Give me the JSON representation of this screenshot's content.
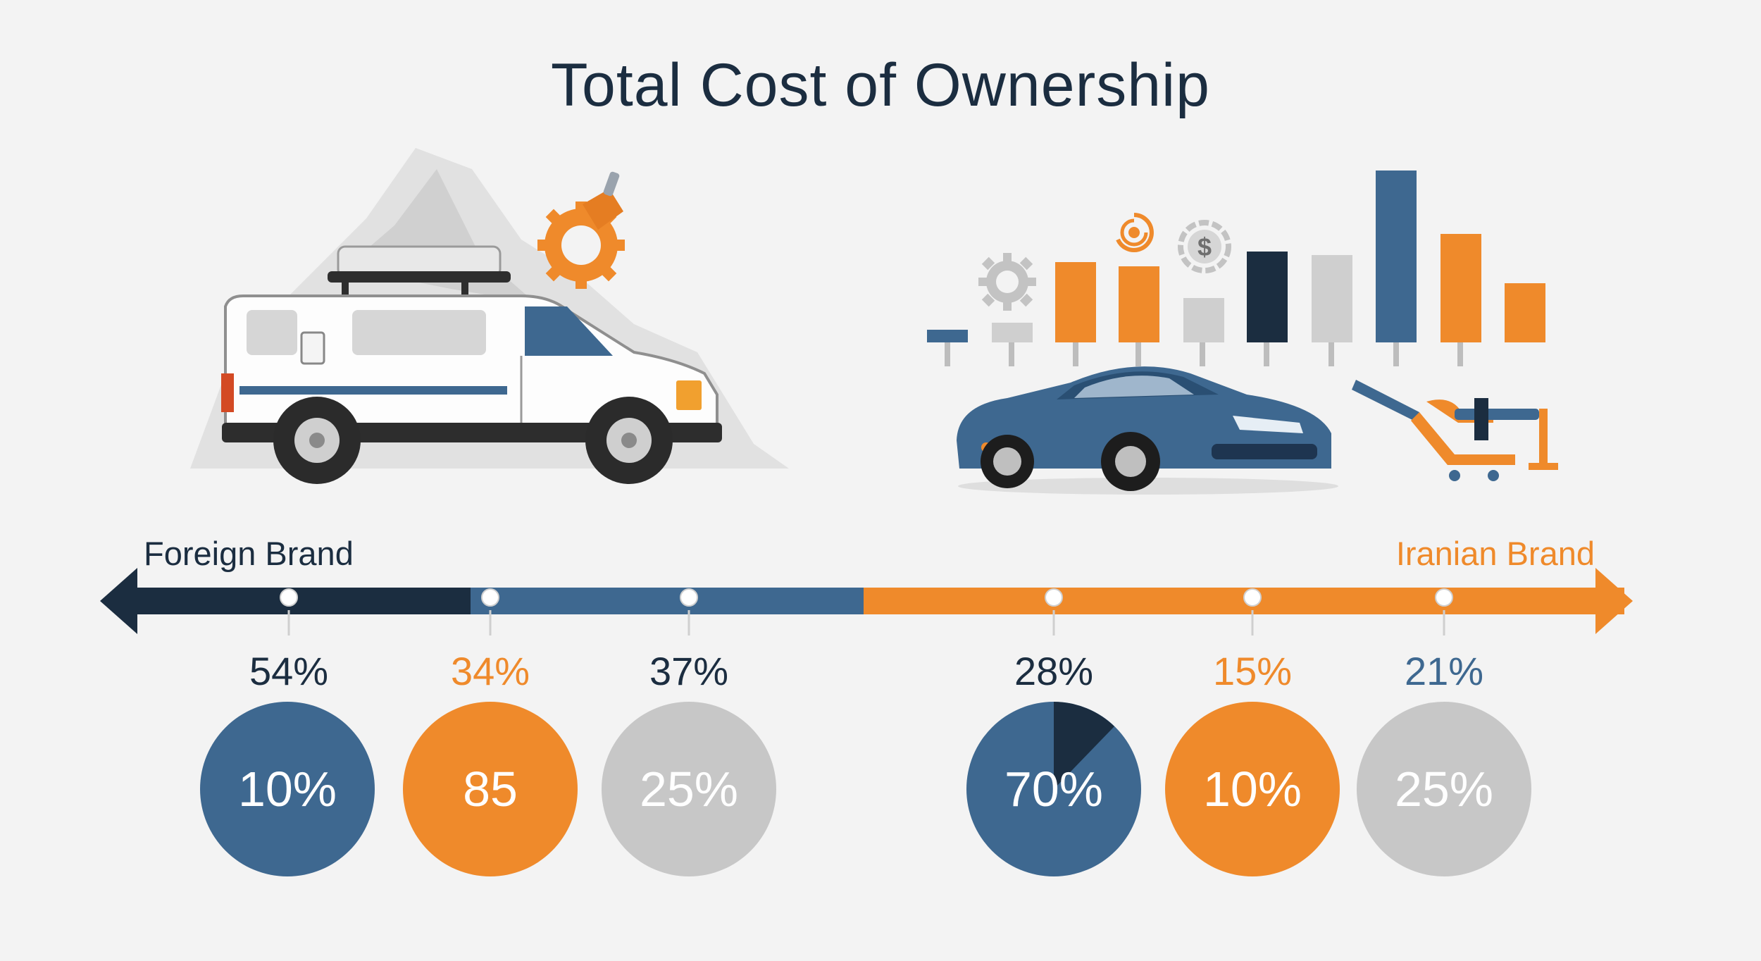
{
  "title": "Total Cost of Ownership",
  "brands": {
    "foreign": "Foreign Brand",
    "iranian": "Iranian Brand"
  },
  "colors": {
    "navy": "#1b2d40",
    "blue": "#3e6890",
    "orange": "#ef8a2b",
    "gray": "#c7c7c7",
    "light_gray": "#dcdcdc"
  },
  "foreign_metrics": [
    {
      "percent": "54%",
      "circle": "10%",
      "percent_color": "#1b2d40",
      "circle_color": "blue"
    },
    {
      "percent": "34%",
      "circle": "85",
      "percent_color": "#ef8a2b",
      "circle_color": "orange"
    },
    {
      "percent": "37%",
      "circle": "25%",
      "percent_color": "#1b2d40",
      "circle_color": "gray"
    }
  ],
  "iranian_metrics": [
    {
      "percent": "28%",
      "circle": "70%",
      "percent_color": "#1b2d40",
      "circle_color": "blue"
    },
    {
      "percent": "15%",
      "circle": "10%",
      "percent_color": "#ef8a2b",
      "circle_color": "orange"
    },
    {
      "percent": "21%",
      "circle": "25%",
      "percent_color": "#3e6890",
      "circle_color": "gray"
    }
  ],
  "icons": [
    "van-illustration",
    "gear-wrench-icon",
    "sports-car-illustration",
    "bar-chart-illustration",
    "gear-icon",
    "dollar-icon",
    "refresh-icon",
    "car-lift-icon",
    "left-arrow-icon",
    "right-arrow-icon"
  ]
}
